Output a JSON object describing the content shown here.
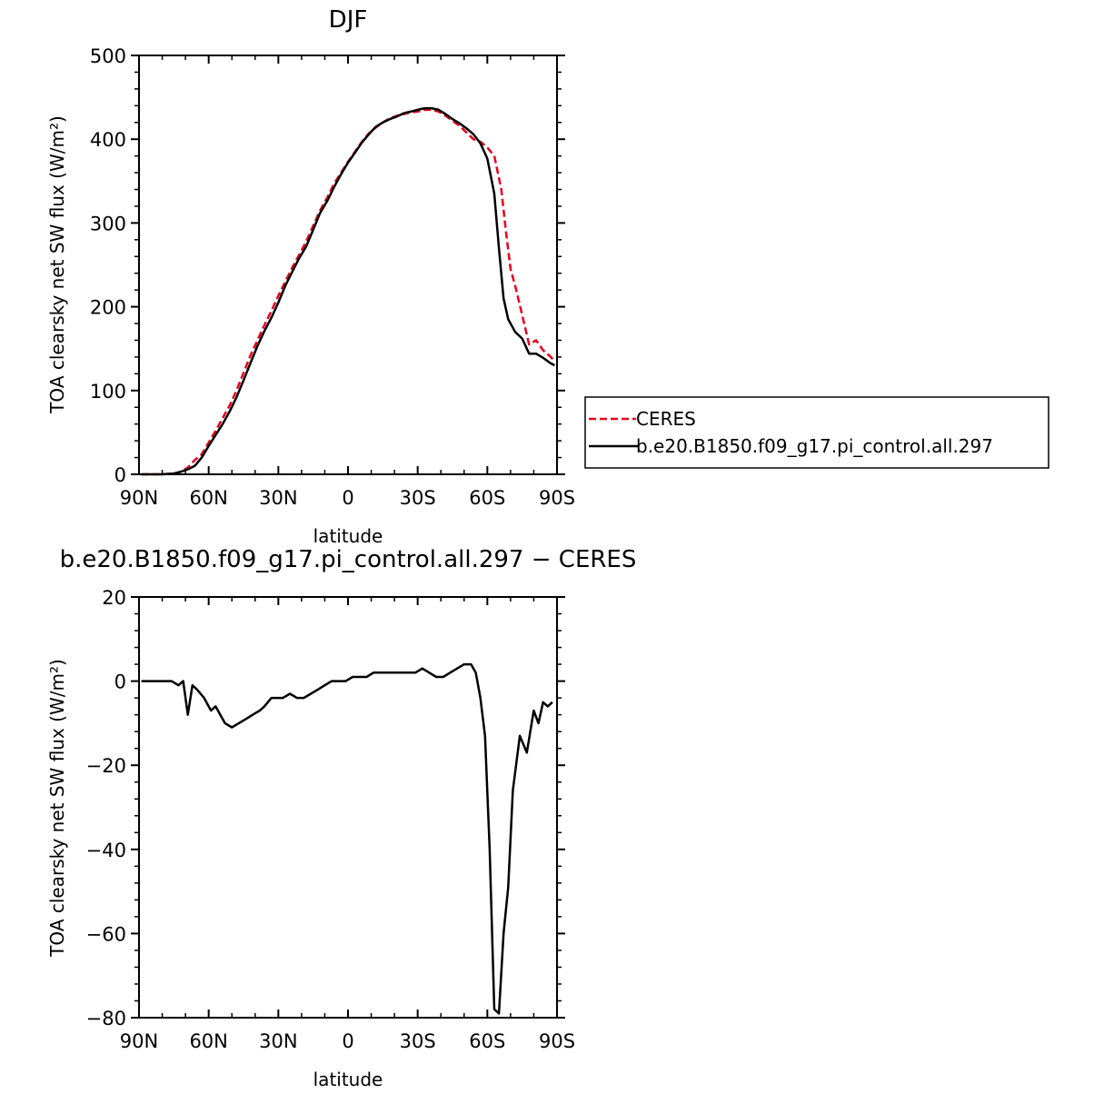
{
  "chart_data": [
    {
      "type": "line",
      "title": "DJF",
      "xlabel": "latitude",
      "ylabel": "TOA clearsky net SW flux (W/m²)",
      "xlim": [
        -90,
        90
      ],
      "ylim": [
        0,
        500
      ],
      "x_ticks": [
        {
          "value": -90,
          "label": "90N"
        },
        {
          "value": -60,
          "label": "60N"
        },
        {
          "value": -30,
          "label": "30N"
        },
        {
          "value": 0,
          "label": "0"
        },
        {
          "value": 30,
          "label": "30S"
        },
        {
          "value": 60,
          "label": "60S"
        },
        {
          "value": 90,
          "label": "90S"
        }
      ],
      "y_ticks": [
        {
          "value": 0,
          "label": "0"
        },
        {
          "value": 100,
          "label": "100"
        },
        {
          "value": 200,
          "label": "200"
        },
        {
          "value": 300,
          "label": "300"
        },
        {
          "value": 400,
          "label": "400"
        },
        {
          "value": 500,
          "label": "500"
        }
      ],
      "grid": false,
      "legend_position": "right",
      "series": [
        {
          "name": "CERES",
          "color": "#e8001c",
          "dash": "dashed",
          "x": [
            -89,
            -80,
            -75,
            -72,
            -69,
            -66,
            -63,
            -60,
            -57,
            -54,
            -51,
            -48,
            -45,
            -42,
            -39,
            -36,
            -33,
            -30,
            -27,
            -24,
            -21,
            -18,
            -15,
            -12,
            -9,
            -6,
            -3,
            0,
            3,
            6,
            9,
            12,
            15,
            18,
            21,
            24,
            27,
            30,
            33,
            36,
            39,
            42,
            45,
            48,
            51,
            54,
            57,
            60,
            63,
            66,
            68,
            70,
            72,
            75,
            78,
            81,
            84,
            87,
            89
          ],
          "y": [
            0,
            0,
            1,
            3,
            8,
            17,
            24,
            38,
            52,
            67,
            82,
            100,
            121,
            142,
            160,
            178,
            195,
            213,
            230,
            247,
            262,
            278,
            297,
            315,
            330,
            347,
            360,
            373,
            385,
            397,
            407,
            414,
            420,
            425,
            428,
            430,
            432,
            433,
            435,
            435,
            433,
            428,
            422,
            416,
            408,
            400,
            397,
            390,
            380,
            340,
            290,
            245,
            225,
            190,
            155,
            160,
            148,
            141,
            135
          ]
        },
        {
          "name": "b.e20.B1850.f09_g17.pi_control.all.297",
          "color": "#000000",
          "dash": "solid",
          "x": [
            -89,
            -80,
            -75,
            -72,
            -69,
            -66,
            -63,
            -60,
            -57,
            -54,
            -51,
            -48,
            -45,
            -42,
            -39,
            -36,
            -33,
            -30,
            -27,
            -24,
            -21,
            -18,
            -15,
            -12,
            -9,
            -6,
            -3,
            0,
            3,
            6,
            9,
            12,
            15,
            18,
            21,
            24,
            27,
            30,
            33,
            36,
            39,
            42,
            45,
            48,
            51,
            54,
            57,
            60,
            63,
            65,
            67,
            69,
            72,
            75,
            78,
            81,
            84,
            87,
            89
          ],
          "y": [
            0,
            0,
            1,
            3,
            6,
            10,
            20,
            34,
            47,
            60,
            75,
            92,
            112,
            133,
            153,
            171,
            187,
            205,
            225,
            242,
            258,
            272,
            292,
            312,
            326,
            343,
            358,
            372,
            384,
            396,
            406,
            415,
            420,
            424,
            427,
            431,
            433,
            435,
            437,
            437,
            435,
            430,
            424,
            419,
            413,
            406,
            395,
            377,
            335,
            270,
            210,
            185,
            170,
            162,
            144,
            144,
            139,
            133,
            130
          ]
        }
      ]
    },
    {
      "type": "line",
      "title": "b.e20.B1850.f09_g17.pi_control.all.297 − CERES",
      "xlabel": "latitude",
      "ylabel": "TOA clearsky net SW flux (W/m²)",
      "xlim": [
        -90,
        90
      ],
      "ylim": [
        -80,
        20
      ],
      "x_ticks": [
        {
          "value": -90,
          "label": "90N"
        },
        {
          "value": -60,
          "label": "60N"
        },
        {
          "value": -30,
          "label": "30N"
        },
        {
          "value": 0,
          "label": "0"
        },
        {
          "value": 30,
          "label": "30S"
        },
        {
          "value": 60,
          "label": "60S"
        },
        {
          "value": 90,
          "label": "90S"
        }
      ],
      "y_ticks": [
        {
          "value": -80,
          "label": "−80"
        },
        {
          "value": -60,
          "label": "−60"
        },
        {
          "value": -40,
          "label": "−40"
        },
        {
          "value": -20,
          "label": "−20"
        },
        {
          "value": 0,
          "label": "0"
        },
        {
          "value": 20,
          "label": "20"
        }
      ],
      "grid": false,
      "series": [
        {
          "color": "#000000",
          "dash": "solid",
          "x": [
            -89,
            -81,
            -76,
            -73,
            -71,
            -69,
            -67,
            -65,
            -62,
            -59,
            -57,
            -55,
            -53,
            -50,
            -47,
            -44,
            -41,
            -38,
            -36,
            -33,
            -31,
            -28,
            -25,
            -22,
            -19,
            -16,
            -13,
            -10,
            -7,
            -4,
            -1,
            2,
            5,
            8,
            11,
            14,
            17,
            20,
            23,
            26,
            29,
            32,
            35,
            38,
            41,
            44,
            47,
            50,
            53,
            55,
            57,
            59,
            61,
            63,
            65,
            67,
            69,
            71,
            74,
            77,
            80,
            82,
            84,
            86,
            88
          ],
          "y": [
            0,
            0,
            0,
            -1,
            0,
            -8,
            -1,
            -2,
            -4,
            -7,
            -6,
            -8,
            -10,
            -11,
            -10,
            -9,
            -8,
            -7,
            -6,
            -4,
            -4,
            -4,
            -3,
            -4,
            -4,
            -3,
            -2,
            -1,
            0,
            0,
            0,
            1,
            1,
            1,
            2,
            2,
            2,
            2,
            2,
            2,
            2,
            3,
            2,
            1,
            1,
            2,
            3,
            4,
            4,
            2,
            -4,
            -13,
            -40,
            -78,
            -79,
            -60,
            -49,
            -26,
            -13,
            -17,
            -7,
            -10,
            -5,
            -6,
            -5
          ]
        }
      ]
    }
  ]
}
